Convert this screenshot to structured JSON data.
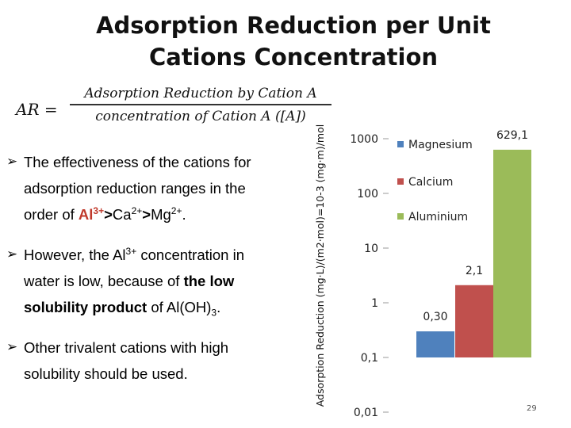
{
  "slide": {
    "title_line1": "Adsorption Reduction per Unit",
    "title_line2": "Cations Concentration",
    "formula": {
      "lhs": "AR =",
      "numerator": "Adsorption Reduction by Cation A",
      "denominator": "concentration of Cation A ([A])"
    },
    "bullets": {
      "b1_t1": "The effectiveness of the cations for adsorption reduction ranges in the order of ",
      "b1_al": "Al",
      "b1_al_sup": "3+",
      "b1_ca": "Ca",
      "b1_ca_sup": "2+",
      "b1_mg": "Mg",
      "b1_mg_sup": "2+",
      "b1_gt": ">",
      "b1_dot": ".",
      "b2_t1": "However, the Al",
      "b2_sup": "3+",
      "b2_t2": " concentration in water is low, because of ",
      "b2_bold": "the low solubility product",
      "b2_t3": " of Al(OH)",
      "b2_sub": "3",
      "b2_dot": ".",
      "b3": "Other trivalent cations with high solubility should be used."
    },
    "page_number": "29"
  },
  "chart_data": {
    "type": "bar",
    "ylabel": "Adsorption Reduction (mg·L)/(m2·mol)=10-3 (mg·m)/mol",
    "yscale": "log",
    "ylim": [
      0.01,
      1000
    ],
    "yticks": [
      "1000",
      "100",
      "10",
      "1",
      "0,1",
      "0,01"
    ],
    "categories": [
      "Magnesium",
      "Calcium",
      "Aluminium"
    ],
    "values": [
      0.3,
      2.1,
      629.1
    ],
    "data_labels": [
      "0,30",
      "2,1",
      "629,1"
    ],
    "colors": [
      "#4f81bd",
      "#c0504d",
      "#9bbb59"
    ],
    "legend": [
      {
        "name": "Magnesium",
        "color": "#4f81bd"
      },
      {
        "name": "Calcium",
        "color": "#c0504d"
      },
      {
        "name": "Aluminium",
        "color": "#9bbb59"
      }
    ],
    "legend_position": "top-right",
    "grid": false
  }
}
